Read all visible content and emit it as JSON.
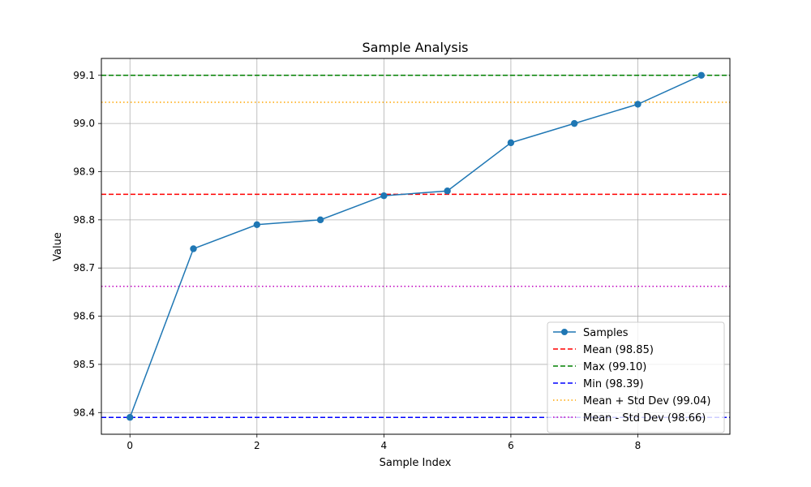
{
  "chart_data": {
    "type": "line",
    "title": "Sample Analysis",
    "xlabel": "Sample Index",
    "ylabel": "Value",
    "xlim": [
      -0.45,
      9.45
    ],
    "ylim": [
      98.355,
      99.135
    ],
    "xticks": [
      0,
      2,
      4,
      6,
      8
    ],
    "xtick_labels": [
      "0",
      "2",
      "4",
      "6",
      "8"
    ],
    "yticks": [
      98.4,
      98.5,
      98.6,
      98.7,
      98.8,
      98.9,
      99.0,
      99.1
    ],
    "ytick_labels": [
      "98.4",
      "98.5",
      "98.6",
      "98.7",
      "98.8",
      "98.9",
      "99.0",
      "99.1"
    ],
    "grid": true,
    "legend_position": "lower-right",
    "series": [
      {
        "name": "Samples",
        "color": "#1f77b4",
        "marker": "circle",
        "x": [
          0,
          1,
          2,
          3,
          4,
          5,
          6,
          7,
          8,
          9
        ],
        "y": [
          98.39,
          98.74,
          98.79,
          98.8,
          98.85,
          98.86,
          98.96,
          99.0,
          99.04,
          99.1
        ]
      }
    ],
    "reference_lines": [
      {
        "label": "Mean (98.85)",
        "value": 98.853,
        "color": "#ff0000",
        "style": "dashed"
      },
      {
        "label": "Max (99.10)",
        "value": 99.1,
        "color": "#008000",
        "style": "dashed"
      },
      {
        "label": "Min (98.39)",
        "value": 98.39,
        "color": "#0000ff",
        "style": "dashed"
      },
      {
        "label": "Mean + Std Dev (99.04)",
        "value": 99.044,
        "color": "#ffa500",
        "style": "dotted"
      },
      {
        "label": "Mean - Std Dev (98.66)",
        "value": 98.662,
        "color": "#bf00bf",
        "style": "dotted"
      }
    ]
  }
}
